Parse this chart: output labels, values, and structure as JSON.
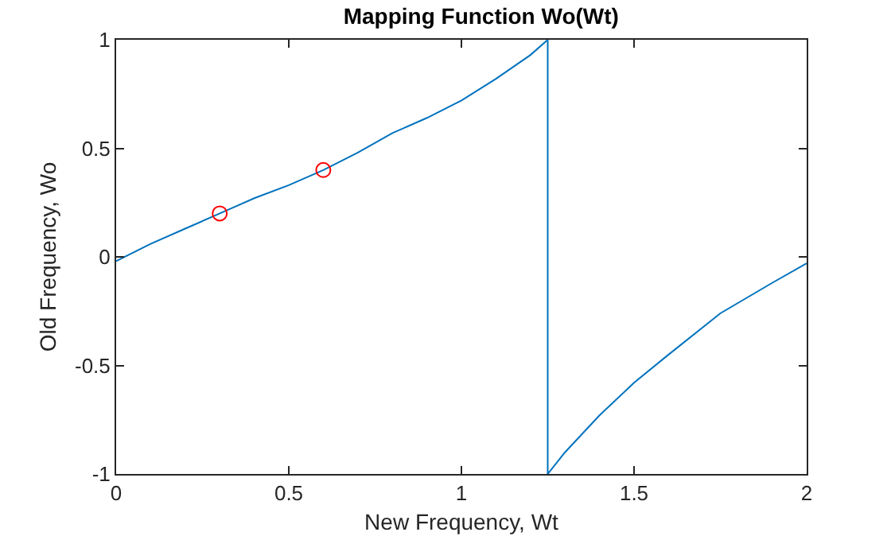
{
  "chart_data": {
    "type": "line",
    "title": "Mapping Function Wo(Wt)",
    "xlabel": "New Frequency, Wt",
    "ylabel": "Old Frequency, Wo",
    "xlim": [
      0,
      2
    ],
    "xticks": [
      0,
      0.5,
      1,
      1.5,
      2
    ],
    "ylim": [
      -1,
      1
    ],
    "yticks": [
      -1,
      -0.5,
      0,
      0.5,
      1
    ],
    "grid": false,
    "series": [
      {
        "color": "#0072bd",
        "marker": "none",
        "line_style": "solid",
        "x": [
          0,
          0.1,
          0.2,
          0.3,
          0.4,
          0.5,
          0.6,
          0.7,
          0.8,
          0.9,
          1,
          1.1,
          1.2,
          1.25,
          1.25,
          1.3,
          1.4,
          1.5,
          1.6,
          1.75,
          1.9,
          2
        ],
        "values": [
          -0.02,
          0.06,
          0.13,
          0.2,
          0.27,
          0.33,
          0.4,
          0.48,
          0.57,
          0.64,
          0.72,
          0.82,
          0.93,
          1,
          -1,
          -0.9,
          -0.73,
          -0.58,
          -0.45,
          -0.26,
          -0.12,
          -0.03
        ]
      },
      {
        "type": "scatter",
        "color": "#ff0000",
        "marker": "circle",
        "x": [
          0.3,
          0.6
        ],
        "values": [
          0.2,
          0.4
        ]
      }
    ]
  }
}
